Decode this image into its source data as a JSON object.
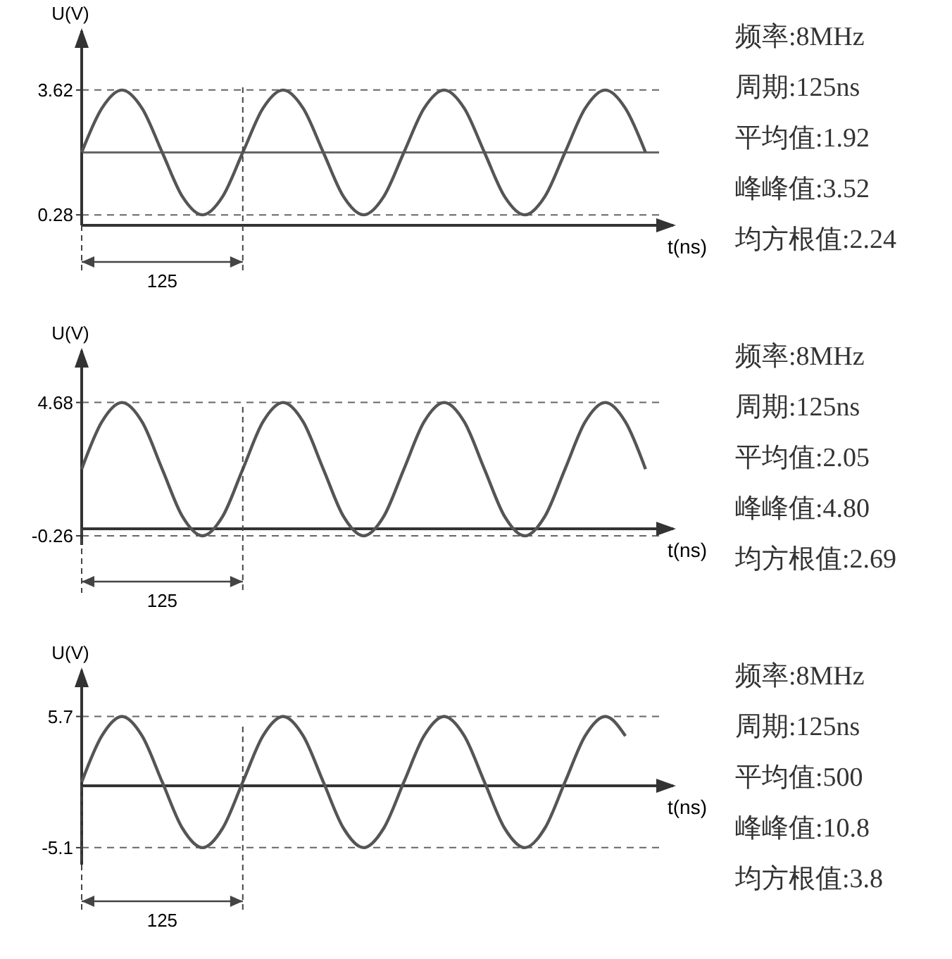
{
  "chart_data": [
    {
      "type": "line",
      "ylabel": "U(V)",
      "xlabel": "t(ns)",
      "ylim": [
        0,
        5.2
      ],
      "yticks": [
        0.28,
        3.62
      ],
      "grid": "y",
      "tick_labels": "y",
      "marker": "none",
      "line_style": "solid",
      "categories": [
        null,
        null,
        null,
        null,
        null,
        null,
        null,
        null,
        null,
        null,
        null,
        null,
        null,
        null,
        null,
        null,
        null,
        null,
        null,
        null,
        null,
        null,
        null,
        null,
        null,
        null,
        null,
        null,
        null
      ],
      "series": [
        {
          "color": "#555555",
          "values": [
            1.95,
            3.13,
            3.62,
            3.13,
            1.95,
            0.77,
            0.28,
            0.77,
            1.95,
            3.13,
            3.62,
            3.13,
            1.95,
            0.77,
            0.28,
            0.77,
            1.95,
            3.13,
            3.62,
            3.13,
            1.95,
            0.77,
            0.28,
            0.77,
            1.95,
            3.13,
            3.62,
            3.13,
            1.95
          ]
        }
      ],
      "ref_lines": [
        {
          "axis": "y",
          "value": 1.95,
          "line_style": "solid"
        }
      ],
      "annotations": [
        "125",
        "频率:8MHz",
        "周期:125ns",
        "平均值:1.92",
        "峰峰值:3.52",
        "均方根值:2.24"
      ]
    },
    {
      "type": "line",
      "ylabel": "U(V)",
      "xlabel": "t(ns)",
      "ylim": [
        -0.6,
        6.6
      ],
      "yticks": [
        -0.26,
        4.68
      ],
      "grid": "y",
      "tick_labels": "y",
      "marker": "none",
      "line_style": "solid",
      "categories": [
        null,
        null,
        null,
        null,
        null,
        null,
        null,
        null,
        null,
        null,
        null,
        null,
        null,
        null,
        null,
        null,
        null,
        null,
        null,
        null,
        null,
        null,
        null,
        null,
        null,
        null,
        null,
        null,
        null
      ],
      "series": [
        {
          "color": "#555555",
          "values": [
            2.21,
            3.96,
            4.68,
            3.96,
            2.21,
            0.46,
            -0.26,
            0.46,
            2.21,
            3.96,
            4.68,
            3.96,
            2.21,
            0.46,
            -0.26,
            0.46,
            2.21,
            3.96,
            4.68,
            3.96,
            2.21,
            0.46,
            -0.26,
            0.46,
            2.21,
            3.96,
            4.68,
            3.96,
            2.21
          ]
        }
      ],
      "annotations": [
        "125",
        "频率:8MHz",
        "周期:125ns",
        "平均值:2.05",
        "峰峰值:4.80",
        "均方根值:2.69"
      ]
    },
    {
      "type": "line",
      "ylabel": "U(V)",
      "xlabel": "t(ns)",
      "ylim": [
        -6.5,
        9.5
      ],
      "yticks": [
        -5.1,
        5.7
      ],
      "grid": "y",
      "tick_labels": "y",
      "marker": "none",
      "line_style": "solid",
      "categories": [
        null,
        null,
        null,
        null,
        null,
        null,
        null,
        null,
        null,
        null,
        null,
        null,
        null,
        null,
        null,
        null,
        null,
        null,
        null,
        null,
        null,
        null,
        null,
        null,
        null,
        null,
        null,
        null
      ],
      "series": [
        {
          "color": "#555555",
          "values": [
            0.3,
            4.1,
            5.7,
            4.1,
            0.3,
            -3.5,
            -5.1,
            -3.5,
            0.3,
            4.1,
            5.7,
            4.1,
            0.3,
            -3.5,
            -5.1,
            -3.5,
            0.3,
            4.1,
            5.7,
            4.1,
            0.3,
            -3.5,
            -5.1,
            -3.5,
            0.3,
            4.1,
            5.7,
            4.1
          ]
        }
      ],
      "annotations": [
        "125",
        "频率:8MHz",
        "周期:125ns",
        "平均值:500",
        "峰峰值:10.8",
        "均方根值:3.8"
      ]
    }
  ]
}
